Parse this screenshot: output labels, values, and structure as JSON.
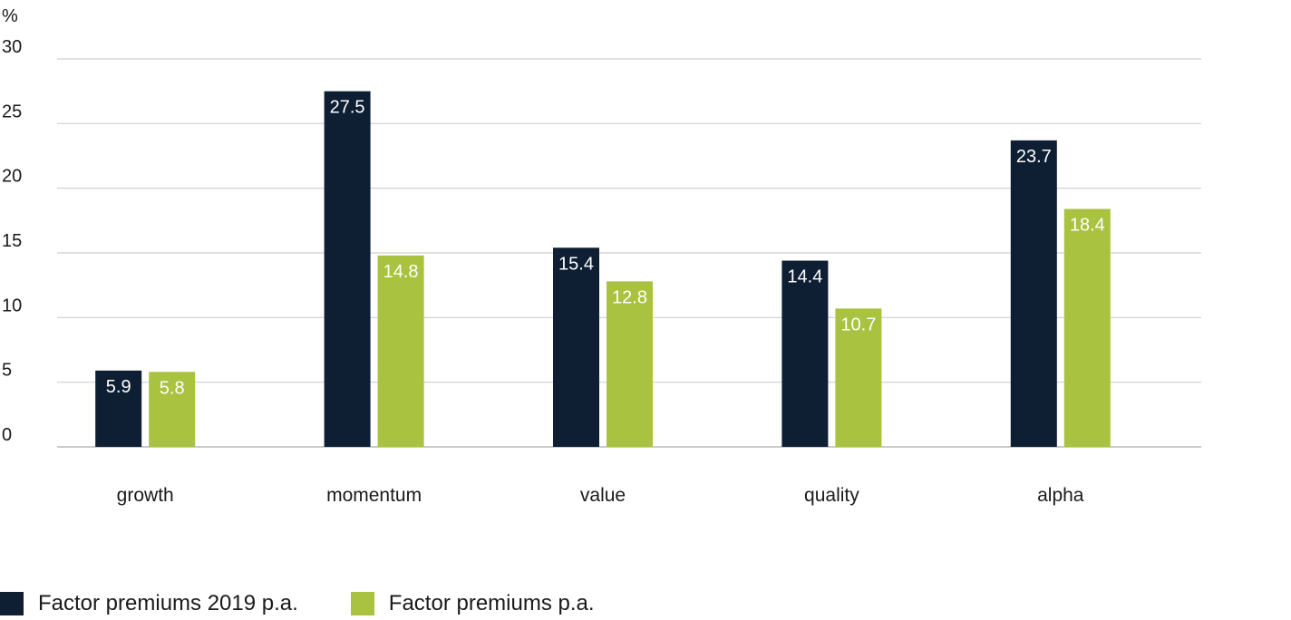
{
  "chart_data": {
    "type": "bar",
    "unit_label": "%",
    "categories": [
      "growth",
      "momentum",
      "value",
      "quality",
      "alpha"
    ],
    "series": [
      {
        "name": "Factor premiums 2019 p.a.",
        "color": "#0e1e33",
        "values": [
          5.9,
          27.5,
          15.4,
          14.4,
          23.7
        ]
      },
      {
        "name": "Factor premiums p.a.",
        "color": "#a9c23f",
        "values": [
          5.8,
          14.8,
          12.8,
          10.7,
          18.4
        ]
      }
    ],
    "ylim": [
      0,
      30
    ],
    "yticks": [
      "0",
      "5",
      "10",
      "15",
      "20",
      "25",
      "30"
    ],
    "grid": true,
    "legend": "bottom-left",
    "xlabel": "",
    "ylabel": ""
  }
}
